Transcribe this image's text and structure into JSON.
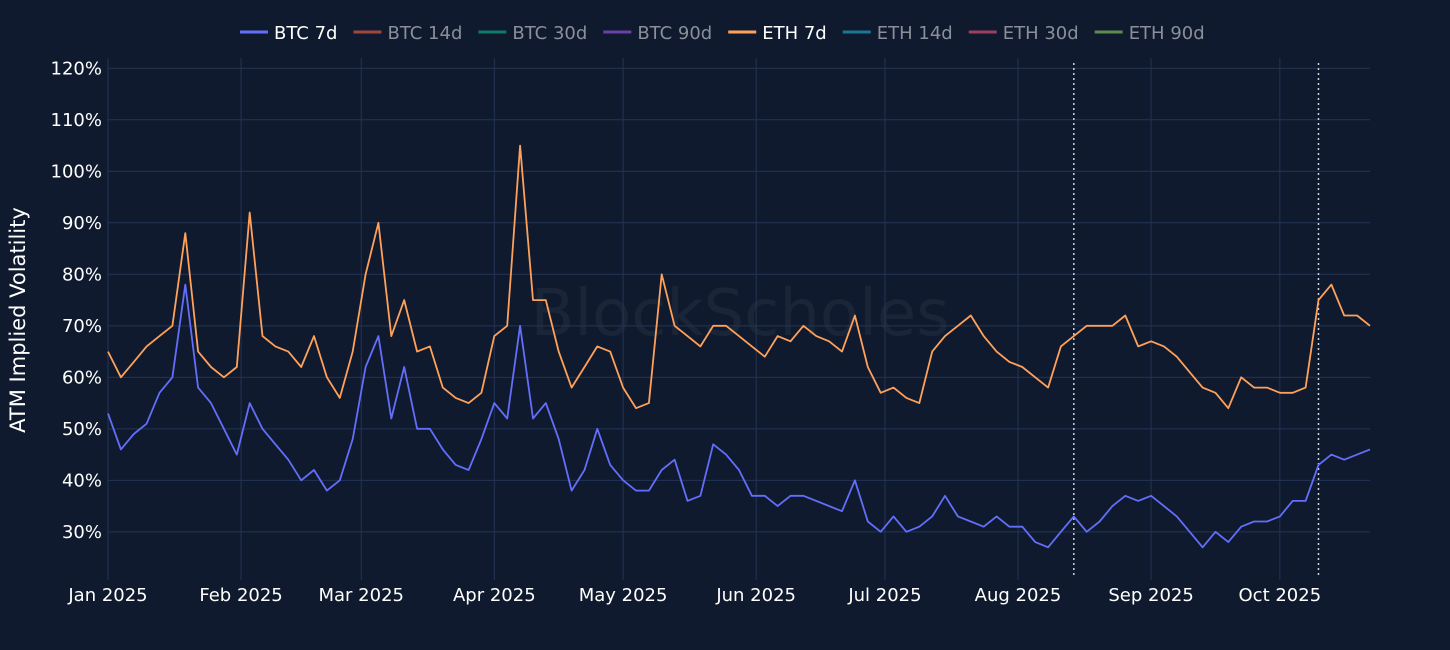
{
  "chart_data": {
    "type": "line",
    "title": "",
    "xlabel": "",
    "ylabel": "ATM Implied Volatility",
    "watermark": "BlockScholes",
    "xlim": [
      "2025-01-01",
      "2025-10-22"
    ],
    "ylim": [
      25.5,
      122
    ],
    "y_unit": "%",
    "grid": true,
    "legend_position": "top-center",
    "background": "#0f1a2e",
    "grid_color": "#243455",
    "x_tick_labels": [
      "Jan 2025",
      "Feb 2025",
      "Mar 2025",
      "Apr 2025",
      "May 2025",
      "Jun 2025",
      "Jul 2025",
      "Aug 2025",
      "Sep 2025",
      "Oct 2025"
    ],
    "x_tick_dates": [
      "2025-01-01",
      "2025-02-01",
      "2025-03-01",
      "2025-04-01",
      "2025-05-01",
      "2025-06-01",
      "2025-07-01",
      "2025-08-01",
      "2025-09-01",
      "2025-10-01"
    ],
    "y_ticks": [
      30,
      40,
      50,
      60,
      70,
      80,
      90,
      100,
      110,
      120
    ],
    "y_tick_labels": [
      "30%",
      "40%",
      "50%",
      "60%",
      "70%",
      "80%",
      "90%",
      "100%",
      "110%",
      "120%"
    ],
    "vertical_markers": [
      "2025-08-14",
      "2025-10-10"
    ],
    "x": [
      "2025-01-01",
      "2025-01-04",
      "2025-01-07",
      "2025-01-10",
      "2025-01-13",
      "2025-01-16",
      "2025-01-19",
      "2025-01-22",
      "2025-01-25",
      "2025-01-28",
      "2025-01-31",
      "2025-02-03",
      "2025-02-06",
      "2025-02-09",
      "2025-02-12",
      "2025-02-15",
      "2025-02-18",
      "2025-02-21",
      "2025-02-24",
      "2025-02-27",
      "2025-03-02",
      "2025-03-05",
      "2025-03-08",
      "2025-03-11",
      "2025-03-14",
      "2025-03-17",
      "2025-03-20",
      "2025-03-23",
      "2025-03-26",
      "2025-03-29",
      "2025-04-01",
      "2025-04-04",
      "2025-04-07",
      "2025-04-10",
      "2025-04-13",
      "2025-04-16",
      "2025-04-19",
      "2025-04-22",
      "2025-04-25",
      "2025-04-28",
      "2025-05-01",
      "2025-05-04",
      "2025-05-07",
      "2025-05-10",
      "2025-05-13",
      "2025-05-16",
      "2025-05-19",
      "2025-05-22",
      "2025-05-25",
      "2025-05-28",
      "2025-05-31",
      "2025-06-03",
      "2025-06-06",
      "2025-06-09",
      "2025-06-12",
      "2025-06-15",
      "2025-06-18",
      "2025-06-21",
      "2025-06-24",
      "2025-06-27",
      "2025-06-30",
      "2025-07-03",
      "2025-07-06",
      "2025-07-09",
      "2025-07-12",
      "2025-07-15",
      "2025-07-18",
      "2025-07-21",
      "2025-07-24",
      "2025-07-27",
      "2025-07-30",
      "2025-08-02",
      "2025-08-05",
      "2025-08-08",
      "2025-08-11",
      "2025-08-14",
      "2025-08-17",
      "2025-08-20",
      "2025-08-23",
      "2025-08-26",
      "2025-08-29",
      "2025-09-01",
      "2025-09-04",
      "2025-09-07",
      "2025-09-10",
      "2025-09-13",
      "2025-09-16",
      "2025-09-19",
      "2025-09-22",
      "2025-09-25",
      "2025-09-28",
      "2025-10-01",
      "2025-10-04",
      "2025-10-07",
      "2025-10-10",
      "2025-10-13",
      "2025-10-16",
      "2025-10-19",
      "2025-10-22"
    ],
    "series": [
      {
        "name": "BTC 7d",
        "color": "#636efa",
        "visible": true,
        "values": [
          53,
          46,
          49,
          51,
          57,
          60,
          78,
          58,
          55,
          50,
          45,
          55,
          50,
          47,
          44,
          40,
          42,
          38,
          40,
          48,
          62,
          68,
          52,
          62,
          50,
          50,
          46,
          43,
          42,
          48,
          55,
          52,
          70,
          52,
          55,
          48,
          38,
          42,
          50,
          43,
          40,
          38,
          38,
          42,
          44,
          36,
          37,
          47,
          45,
          42,
          37,
          37,
          35,
          37,
          37,
          36,
          35,
          34,
          40,
          32,
          30,
          33,
          30,
          31,
          33,
          37,
          33,
          32,
          31,
          33,
          31,
          31,
          28,
          27,
          30,
          33,
          30,
          32,
          35,
          37,
          36,
          37,
          35,
          33,
          30,
          27,
          30,
          28,
          31,
          32,
          32,
          33,
          36,
          36,
          43,
          45,
          44,
          45,
          46
        ]
      },
      {
        "name": "BTC 14d",
        "color": "#a0463c",
        "visible": false
      },
      {
        "name": "BTC 30d",
        "color": "#0e7a68",
        "visible": false
      },
      {
        "name": "BTC 90d",
        "color": "#6a3fa8",
        "visible": false
      },
      {
        "name": "ETH 7d",
        "color": "#ffa15a",
        "visible": true,
        "values": [
          65,
          60,
          63,
          66,
          68,
          70,
          88,
          65,
          62,
          60,
          62,
          92,
          68,
          66,
          65,
          62,
          68,
          60,
          56,
          65,
          80,
          90,
          68,
          75,
          65,
          66,
          58,
          56,
          55,
          57,
          68,
          70,
          105,
          75,
          75,
          65,
          58,
          62,
          66,
          65,
          58,
          54,
          55,
          80,
          70,
          68,
          66,
          70,
          70,
          68,
          66,
          64,
          68,
          67,
          70,
          68,
          67,
          65,
          72,
          62,
          57,
          58,
          56,
          55,
          65,
          68,
          70,
          72,
          68,
          65,
          63,
          62,
          60,
          58,
          66,
          68,
          70,
          70,
          70,
          72,
          66,
          67,
          66,
          64,
          61,
          58,
          57,
          54,
          60,
          58,
          58,
          57,
          57,
          58,
          75,
          78,
          72,
          72,
          70
        ]
      },
      {
        "name": "ETH 14d",
        "color": "#1a7896",
        "visible": false
      },
      {
        "name": "ETH 30d",
        "color": "#9c3f63",
        "visible": false
      },
      {
        "name": "ETH 90d",
        "color": "#5f8a4e",
        "visible": false
      }
    ]
  }
}
